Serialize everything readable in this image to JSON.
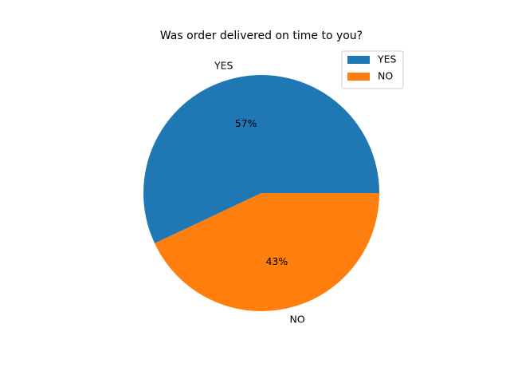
{
  "chart_data": {
    "type": "pie",
    "title": "Was order delivered on time to you?",
    "categories": [
      "YES",
      "NO"
    ],
    "values": [
      57,
      43
    ],
    "percent_labels": [
      "57%",
      "43%"
    ],
    "colors": [
      "#1f77b4",
      "#ff7f0e"
    ],
    "start_angle_deg": 0,
    "direction": "counterclockwise",
    "legend": {
      "placement": "top-right",
      "entries": [
        "YES",
        "NO"
      ]
    }
  }
}
